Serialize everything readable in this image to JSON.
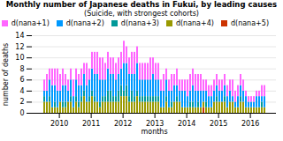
{
  "chart_data": {
    "type": "bar",
    "title": "Monthly number of Japanese deaths in Fukui, by leading causes",
    "subtitle": "(Suicide, with strongest cohorts)",
    "xlabel": "months",
    "ylabel": "number of deaths",
    "categories": [
      null,
      null,
      null,
      null,
      null,
      "2010",
      null,
      null,
      null,
      null,
      null,
      null,
      null,
      null,
      null,
      null,
      null,
      "2011",
      null,
      null,
      null,
      null,
      null,
      null,
      null,
      null,
      null,
      null,
      null,
      "2012",
      null,
      null,
      null,
      null,
      null,
      null,
      null,
      null,
      null,
      null,
      null,
      "2013",
      null,
      null,
      null,
      null,
      null,
      null,
      null,
      null,
      null,
      null,
      null,
      "2014",
      null,
      null,
      null,
      null,
      null,
      null,
      null,
      null,
      null,
      null,
      null,
      "2015",
      null,
      null,
      null,
      null,
      null,
      null,
      null,
      null,
      null,
      null,
      null,
      "2016",
      null,
      null,
      null,
      null,
      null,
      null
    ],
    "series": [
      {
        "name": "d(nana+5)",
        "color": "#cc3300",
        "values": [
          0,
          0,
          0,
          0,
          0,
          0,
          0,
          0,
          0,
          0,
          0,
          0,
          0,
          0,
          0,
          0,
          0,
          0,
          0,
          0,
          0,
          0,
          0,
          0,
          0,
          0,
          0,
          0,
          0,
          0,
          0,
          0,
          0,
          0,
          0,
          0,
          0,
          0,
          0,
          0,
          0,
          0,
          0,
          0,
          0,
          0,
          0,
          0,
          0,
          0,
          0,
          0,
          0,
          0,
          0,
          0,
          0,
          0,
          0,
          0,
          1,
          0,
          0,
          0,
          0,
          0,
          0,
          0,
          0,
          0,
          0,
          0,
          0,
          0,
          0,
          0,
          0,
          0,
          0,
          0,
          0,
          0,
          0,
          0
        ]
      },
      {
        "name": "d(nana+4)",
        "color": "#999900",
        "values": [
          2,
          2,
          2,
          1,
          1,
          1,
          2,
          1,
          1,
          2,
          2,
          1,
          2,
          1,
          2,
          3,
          2,
          2,
          3,
          2,
          2,
          1,
          2,
          2,
          2,
          2,
          2,
          2,
          2,
          3,
          3,
          3,
          2,
          2,
          2,
          3,
          2,
          2,
          2,
          2,
          2,
          2,
          2,
          2,
          1,
          1,
          2,
          1,
          1,
          2,
          2,
          2,
          1,
          1,
          1,
          1,
          1,
          1,
          1,
          1,
          1,
          1,
          1,
          1,
          2,
          2,
          2,
          2,
          2,
          1,
          2,
          2,
          1,
          1,
          2,
          2,
          1,
          1,
          1,
          1,
          1,
          1,
          1,
          1
        ]
      },
      {
        "name": "d(nana+3)",
        "color": "#009999",
        "values": [
          1,
          0,
          1,
          0,
          1,
          0,
          0,
          1,
          1,
          0,
          1,
          0,
          1,
          1,
          1,
          1,
          0,
          1,
          1,
          1,
          0,
          1,
          1,
          1,
          2,
          2,
          1,
          1,
          2,
          2,
          1,
          2,
          1,
          2,
          1,
          1,
          1,
          1,
          1,
          1,
          1,
          1,
          1,
          1,
          0,
          0,
          1,
          0,
          1,
          0,
          1,
          0,
          0,
          0,
          0,
          1,
          1,
          0,
          1,
          0,
          0,
          1,
          0,
          0,
          0,
          1,
          0,
          0,
          1,
          0,
          0,
          0,
          0,
          0,
          1,
          0,
          0,
          0,
          0,
          0,
          0,
          0,
          1,
          0
        ]
      },
      {
        "name": "d(nana+2)",
        "color": "#0099ff",
        "values": [
          1,
          2,
          3,
          4,
          3,
          3,
          2,
          3,
          3,
          2,
          3,
          2,
          3,
          3,
          2,
          3,
          3,
          3,
          4,
          4,
          5,
          4,
          3,
          3,
          4,
          3,
          4,
          3,
          3,
          3,
          5,
          4,
          4,
          3,
          4,
          5,
          3,
          3,
          3,
          3,
          3,
          4,
          3,
          3,
          3,
          3,
          3,
          3,
          2,
          3,
          2,
          2,
          3,
          3,
          2,
          2,
          3,
          3,
          2,
          3,
          2,
          2,
          2,
          2,
          2,
          2,
          2,
          2,
          2,
          2,
          2,
          1,
          1,
          2,
          2,
          2,
          2,
          1,
          1,
          1,
          2,
          2,
          1,
          2
        ]
      },
      {
        "name": "d(nana+1)",
        "color": "#ff66ff",
        "values": [
          2,
          3,
          2,
          3,
          3,
          4,
          3,
          3,
          2,
          2,
          2,
          3,
          2,
          2,
          3,
          2,
          4,
          2,
          3,
          4,
          4,
          4,
          4,
          3,
          3,
          3,
          3,
          3,
          3,
          3,
          4,
          3,
          3,
          4,
          4,
          3,
          3,
          3,
          3,
          3,
          4,
          3,
          3,
          3,
          2,
          3,
          2,
          2,
          3,
          2,
          3,
          2,
          2,
          2,
          3,
          3,
          3,
          3,
          3,
          3,
          2,
          2,
          2,
          2,
          2,
          2,
          2,
          2,
          2,
          2,
          2,
          3,
          2,
          2,
          2,
          2,
          1,
          1,
          1,
          1,
          1,
          1,
          2,
          2
        ]
      }
    ],
    "stacked": true,
    "ylim": [
      0,
      14
    ],
    "yticks": [
      0,
      2,
      4,
      6,
      8,
      10,
      12,
      14
    ],
    "grid": true,
    "legend": "upper right"
  }
}
